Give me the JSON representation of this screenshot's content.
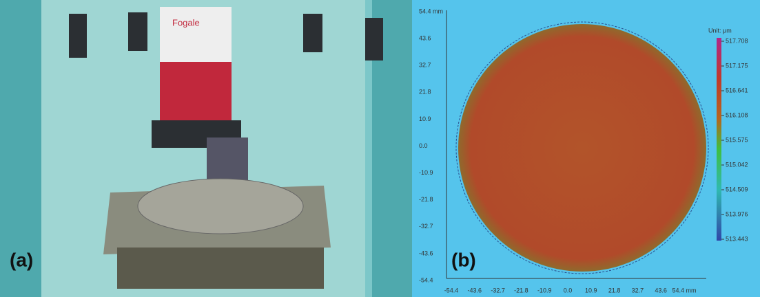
{
  "panel_a": {
    "label": "(a)",
    "brand": "Fogale"
  },
  "panel_b": {
    "label": "(b)",
    "y_tick_labels": [
      "54.4 mm",
      "43.6",
      "32.7",
      "21.8",
      "10.9",
      "0.0",
      "-10.9",
      "-21.8",
      "-32.7",
      "-43.6",
      "-54.4"
    ],
    "x_tick_labels": [
      "-54.4",
      "-43.6",
      "-32.7",
      "-21.8",
      "-10.9",
      "0.0",
      "10.9",
      "21.8",
      "32.7",
      "43.6",
      "54.4 mm"
    ],
    "colorbar_title": "Unit: μm",
    "colorbar_labels": [
      "517.708",
      "517.175",
      "516.641",
      "516.108",
      "515.575",
      "515.042",
      "514.509",
      "513.976",
      "513.443"
    ]
  }
}
